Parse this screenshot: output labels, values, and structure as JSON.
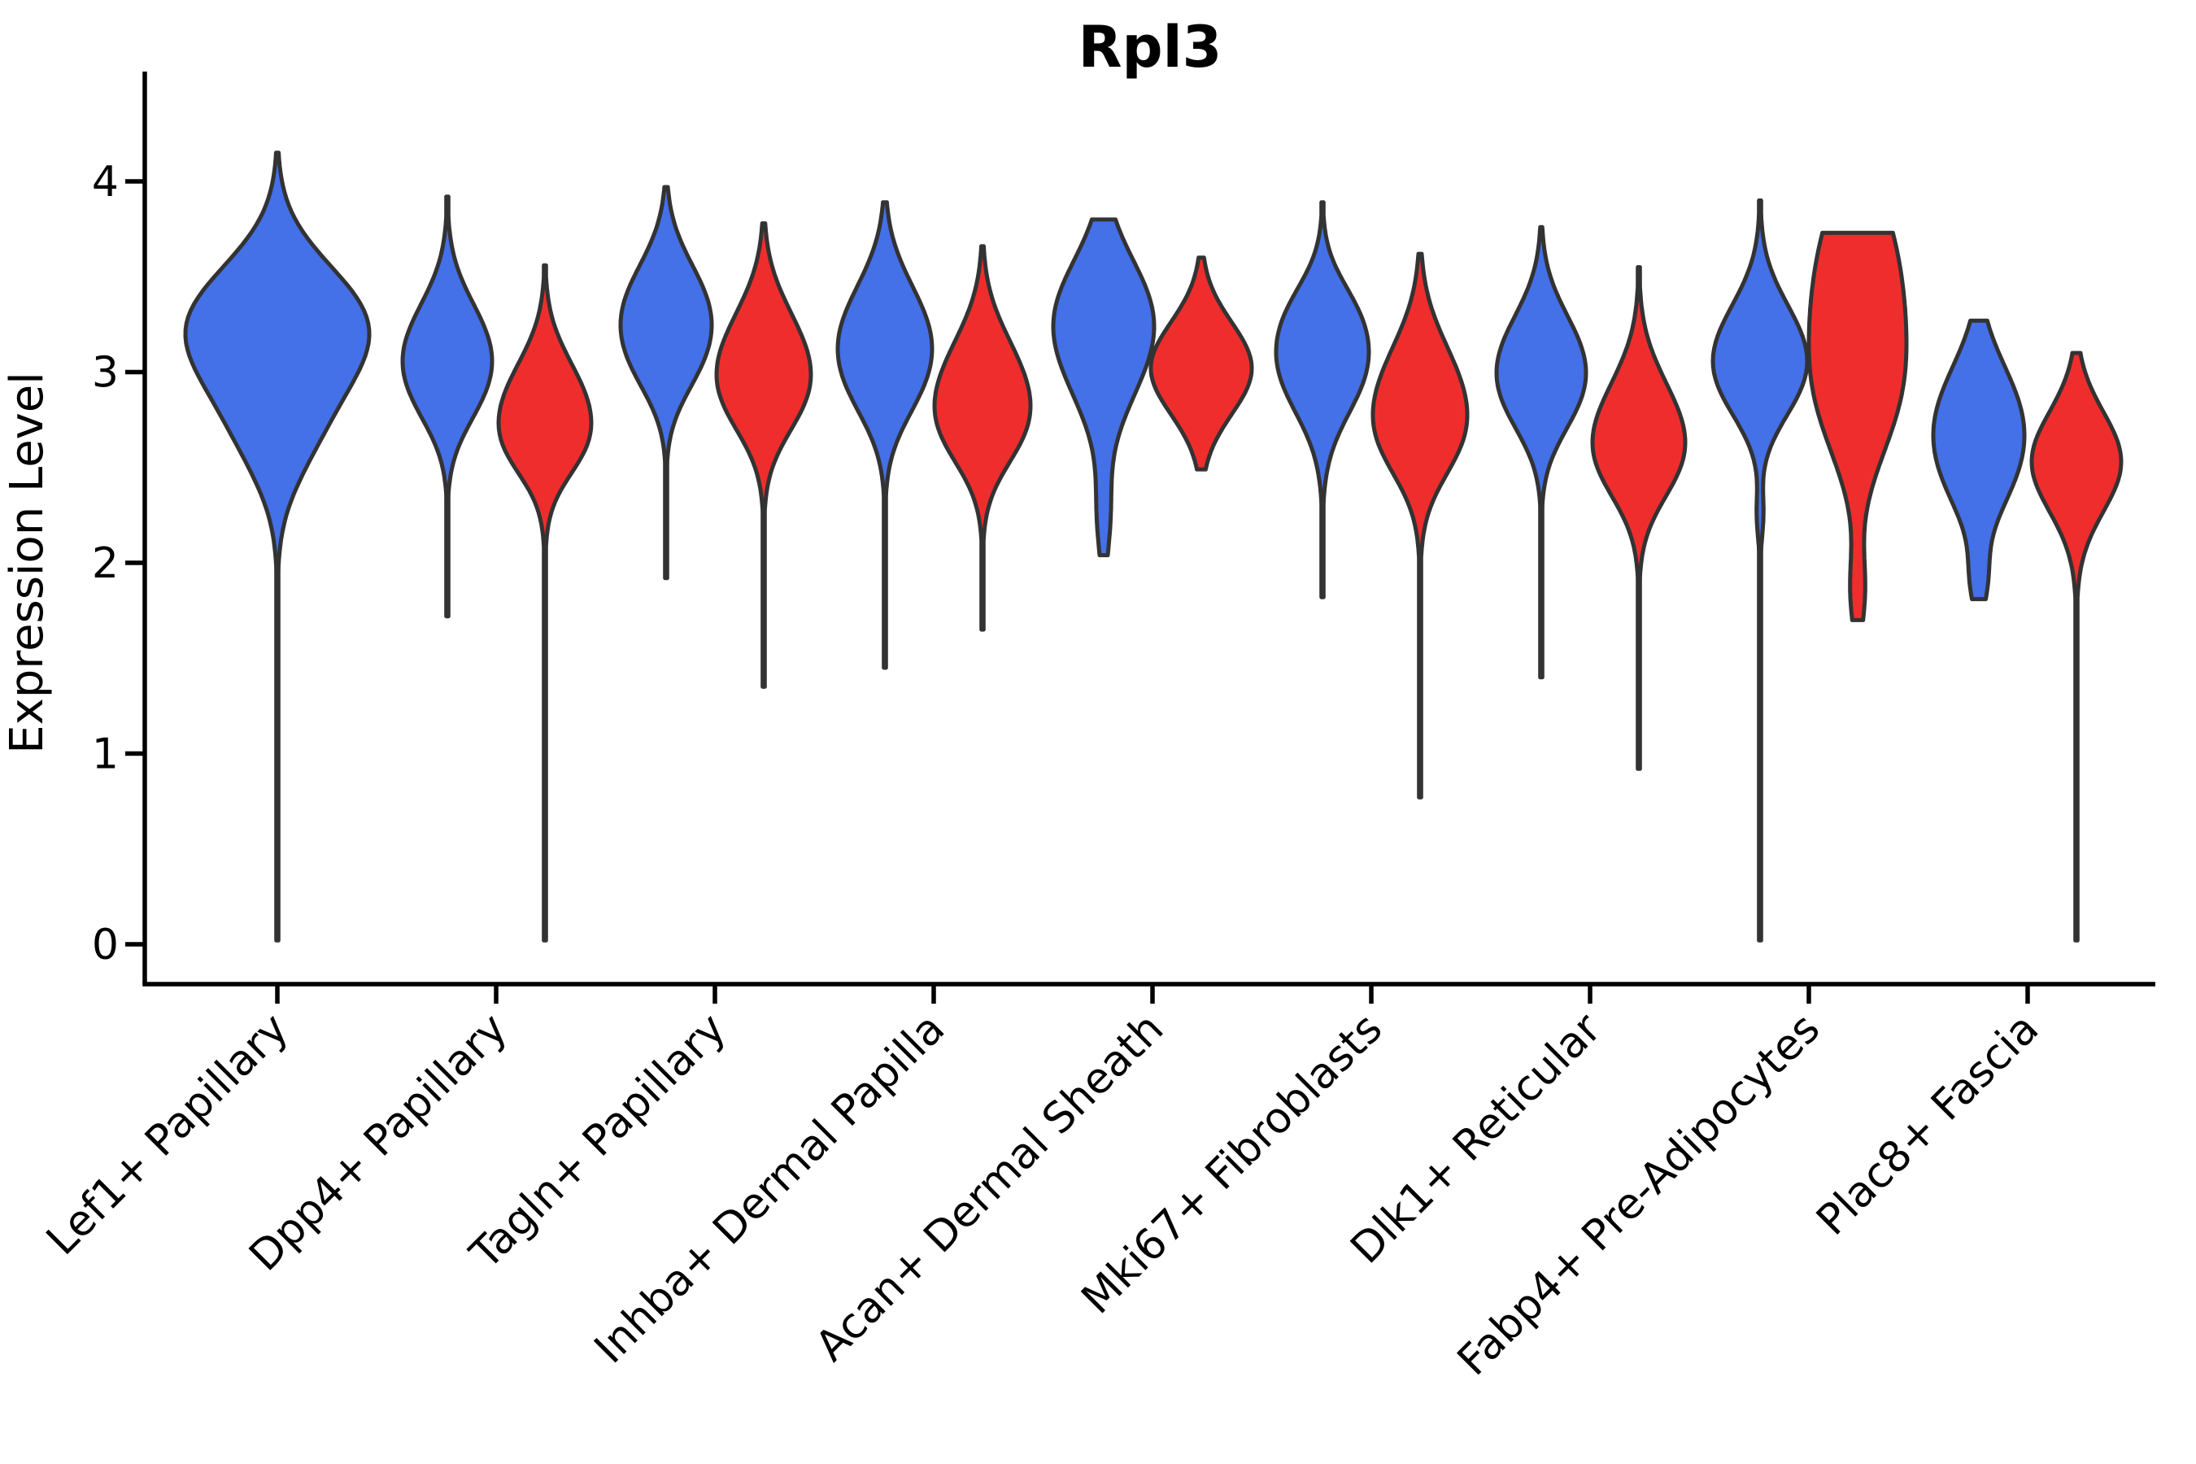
{
  "chart_data": {
    "type": "violin",
    "title": "Rpl3",
    "ylabel": "Expression Level",
    "xlabel": "",
    "ylim": [
      -0.2,
      4.35
    ],
    "grid": false,
    "legend": "none",
    "yticks": [
      "0",
      "1",
      "2",
      "3",
      "4"
    ],
    "ytick_values": [
      0,
      1,
      2,
      3,
      4
    ],
    "categories": [
      "Lef1+ Papillary",
      "Dpp4+ Papillary",
      "Tagln+ Papillary",
      "Inhba+ Dermal Papilla",
      "Acan+ Dermal Sheath",
      "Mki67+ Fibroblasts",
      "Dlk1+ Reticular",
      "Fabp4+ Pre-Adipocytes",
      "Plac8+ Fascia"
    ],
    "series_colors": {
      "blue_series": "#4470E8",
      "red_series": "#F02D2D"
    },
    "violins": [
      {
        "category": 0,
        "series": "blue_series",
        "center_x": 341,
        "max_halfwidth": 113,
        "min": 0.02,
        "max": 4.15,
        "mode": 3.27,
        "bumps": [
          [
            3.3,
            0.3,
            1.0
          ],
          [
            2.95,
            0.33,
            0.55
          ],
          [
            2.6,
            0.25,
            0.2
          ]
        ]
      },
      {
        "category": 1,
        "series": "blue_series",
        "center_x": 550,
        "max_halfwidth": 55,
        "min": 1.72,
        "max": 3.92,
        "mode": 3.1,
        "bumps": [
          [
            3.12,
            0.26,
            1.0
          ],
          [
            2.85,
            0.2,
            0.3
          ]
        ]
      },
      {
        "category": 1,
        "series": "red_series",
        "center_x": 670,
        "max_halfwidth": 57,
        "min": 0.02,
        "max": 3.56,
        "mode": 2.8,
        "bumps": [
          [
            2.8,
            0.26,
            1.0
          ],
          [
            2.58,
            0.16,
            0.25
          ]
        ]
      },
      {
        "category": 2,
        "series": "blue_series",
        "center_x": 819,
        "max_halfwidth": 56,
        "min": 1.92,
        "max": 3.97,
        "mode": 3.3,
        "bumps": [
          [
            3.32,
            0.26,
            1.0
          ],
          [
            3.02,
            0.2,
            0.35
          ]
        ]
      },
      {
        "category": 2,
        "series": "red_series",
        "center_x": 939,
        "max_halfwidth": 58,
        "min": 1.35,
        "max": 3.78,
        "mode": 3.05,
        "bumps": [
          [
            3.06,
            0.28,
            1.0
          ],
          [
            2.82,
            0.2,
            0.3
          ]
        ]
      },
      {
        "category": 3,
        "series": "blue_series",
        "center_x": 1088,
        "max_halfwidth": 58,
        "min": 1.45,
        "max": 3.89,
        "mode": 3.2,
        "bumps": [
          [
            3.2,
            0.28,
            1.0
          ],
          [
            2.9,
            0.22,
            0.35
          ]
        ]
      },
      {
        "category": 3,
        "series": "red_series",
        "center_x": 1208,
        "max_halfwidth": 59,
        "min": 1.65,
        "max": 3.66,
        "mode": 2.9,
        "bumps": [
          [
            2.92,
            0.28,
            1.0
          ],
          [
            2.66,
            0.2,
            0.4
          ]
        ]
      },
      {
        "category": 4,
        "series": "blue_series",
        "center_x": 1357,
        "max_halfwidth": 62,
        "min": 2.04,
        "max": 3.8,
        "mode": 3.32,
        "bumps": [
          [
            3.32,
            0.3,
            1.0
          ],
          [
            2.95,
            0.28,
            0.4
          ],
          [
            2.25,
            0.22,
            0.15
          ]
        ]
      },
      {
        "category": 4,
        "series": "red_series",
        "center_x": 1477,
        "max_halfwidth": 62,
        "min": 2.49,
        "max": 3.6,
        "mode": 3.02,
        "bumps": [
          [
            3.02,
            0.24,
            1.0
          ]
        ]
      },
      {
        "category": 5,
        "series": "blue_series",
        "center_x": 1626,
        "max_halfwidth": 57,
        "min": 1.82,
        "max": 3.89,
        "mode": 3.05,
        "bumps": [
          [
            3.05,
            0.27,
            1.0
          ],
          [
            3.35,
            0.18,
            0.25
          ]
        ]
      },
      {
        "category": 5,
        "series": "red_series",
        "center_x": 1746,
        "max_halfwidth": 58,
        "min": 0.77,
        "max": 3.62,
        "mode": 2.86,
        "bumps": [
          [
            2.86,
            0.3,
            1.0
          ],
          [
            2.6,
            0.2,
            0.3
          ]
        ]
      },
      {
        "category": 6,
        "series": "blue_series",
        "center_x": 1895,
        "max_halfwidth": 55,
        "min": 1.4,
        "max": 3.76,
        "mode": 3.06,
        "bumps": [
          [
            3.06,
            0.26,
            1.0
          ],
          [
            2.8,
            0.2,
            0.3
          ]
        ]
      },
      {
        "category": 6,
        "series": "red_series",
        "center_x": 2015,
        "max_halfwidth": 57,
        "min": 0.92,
        "max": 3.55,
        "mode": 2.7,
        "bumps": [
          [
            2.7,
            0.28,
            1.0
          ],
          [
            2.48,
            0.2,
            0.3
          ]
        ]
      },
      {
        "category": 7,
        "series": "blue_series",
        "center_x": 2164,
        "max_halfwidth": 58,
        "min": 0.02,
        "max": 3.9,
        "mode": 3.12,
        "bumps": [
          [
            3.12,
            0.26,
            1.0
          ],
          [
            2.88,
            0.2,
            0.3
          ],
          [
            2.25,
            0.12,
            0.08
          ]
        ]
      },
      {
        "category": 7,
        "series": "red_series",
        "center_x": 2284,
        "max_halfwidth": 60,
        "min": 1.7,
        "max": 3.73,
        "mode": 3.4,
        "bumps": [
          [
            3.5,
            0.45,
            1.0
          ],
          [
            2.85,
            0.35,
            0.75
          ],
          [
            1.85,
            0.2,
            0.18
          ]
        ]
      },
      {
        "category": 8,
        "series": "blue_series",
        "center_x": 2433,
        "max_halfwidth": 56,
        "min": 1.81,
        "max": 3.27,
        "mode": 2.78,
        "bumps": [
          [
            2.8,
            0.28,
            0.95
          ],
          [
            2.45,
            0.25,
            0.6
          ],
          [
            1.9,
            0.15,
            0.2
          ]
        ]
      },
      {
        "category": 8,
        "series": "red_series",
        "center_x": 2553,
        "max_halfwidth": 55,
        "min": 0.02,
        "max": 3.1,
        "mode": 2.53,
        "bumps": [
          [
            2.53,
            0.26,
            1.0
          ]
        ]
      }
    ],
    "style": {
      "outline_color": "#333333",
      "outline_width": 5,
      "axis_color": "#000000",
      "background": "#ffffff"
    }
  }
}
